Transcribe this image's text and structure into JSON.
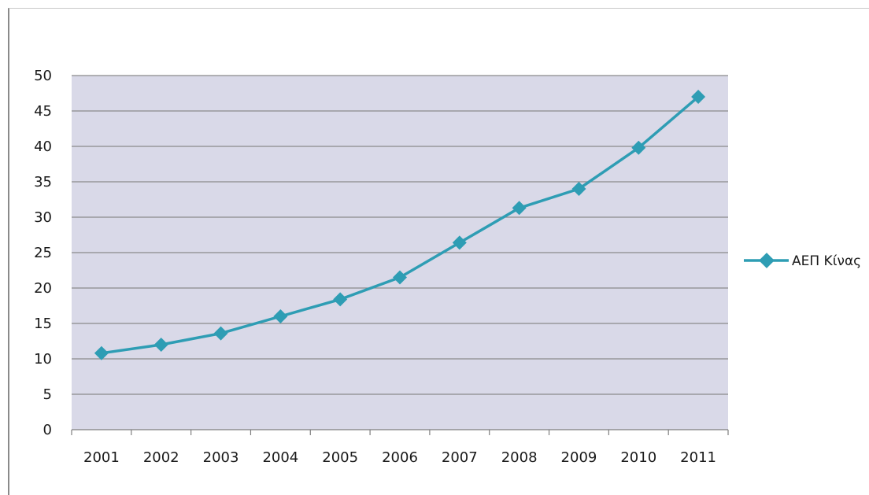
{
  "chart_data": {
    "type": "line",
    "x": [
      "2001",
      "2002",
      "2003",
      "2004",
      "2005",
      "2006",
      "2007",
      "2008",
      "2009",
      "2010",
      "2011"
    ],
    "series": [
      {
        "name": "ΑΕΠ Κίνας",
        "values": [
          10.8,
          12.0,
          13.6,
          16.0,
          18.4,
          21.5,
          26.4,
          31.3,
          34.0,
          39.8,
          47.0
        ]
      }
    ],
    "title": "",
    "xlabel": "",
    "ylabel": "",
    "ylim": [
      0,
      50
    ],
    "yticks": [
      0,
      5,
      10,
      15,
      20,
      25,
      30,
      35,
      40,
      45,
      50
    ],
    "grid": true,
    "legend": "right",
    "colors": {
      "series": "#2e9db4",
      "plot_background": "#d9d9e8",
      "gridline": "#8c8c8c"
    }
  }
}
